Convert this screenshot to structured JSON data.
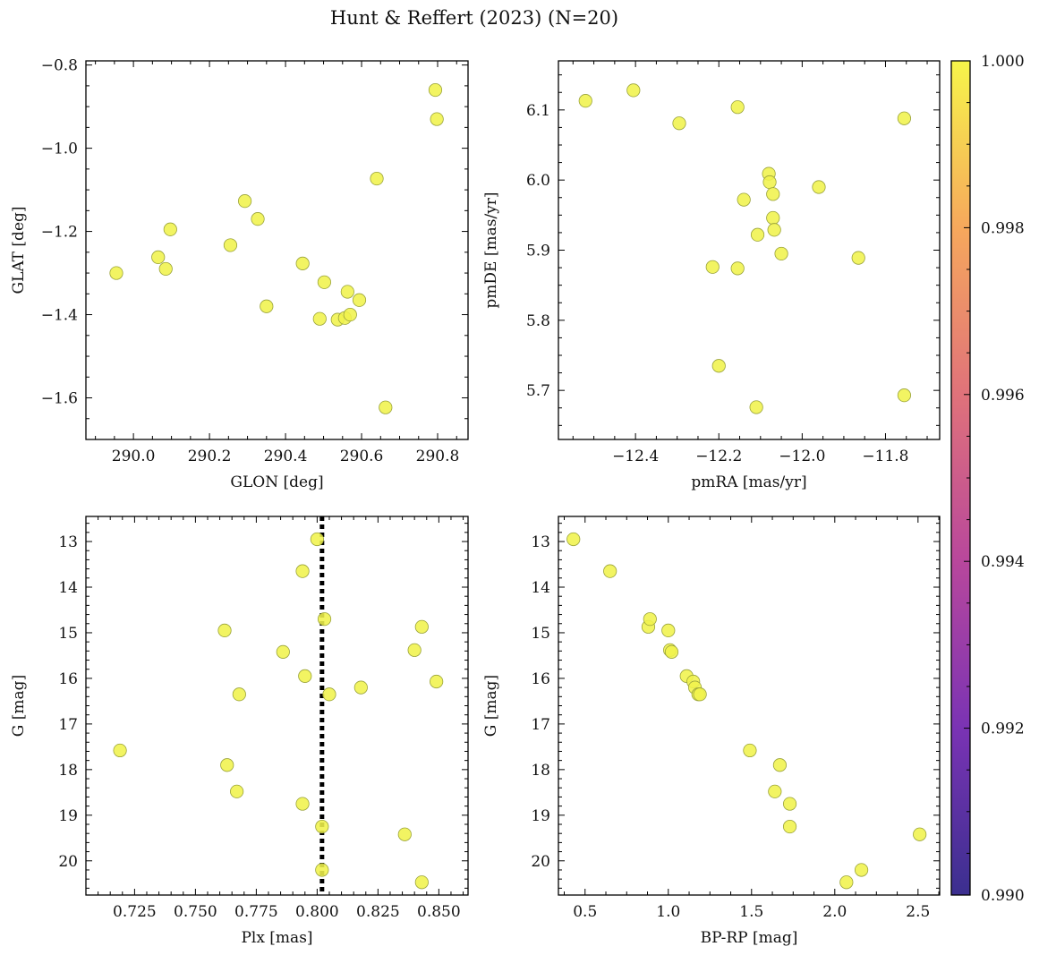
{
  "title": "Hunt & Reffert (2023) (N=20)",
  "colorbar": {
    "min": 0.99,
    "max": 1.0,
    "ticks": [
      "0.990",
      "0.992",
      "0.994",
      "0.996",
      "0.998",
      "1.000"
    ],
    "tick_values": [
      0.99,
      0.992,
      0.994,
      0.996,
      0.998,
      1.0
    ],
    "colormap": "plasma",
    "colors": [
      "#3b2f8f",
      "#7a33b4",
      "#b8479c",
      "#e0727a",
      "#f6a85c",
      "#f7f54a"
    ]
  },
  "point_style": {
    "fill": "#f0f34c",
    "stroke": "#9aa33a"
  },
  "chart_data": [
    {
      "type": "scatter",
      "xlabel": "GLON [deg]",
      "ylabel": "GLAT [deg]",
      "xlim": [
        289.875,
        290.88
      ],
      "ylim": [
        -1.7,
        -0.79
      ],
      "xticks": [
        290.0,
        290.2,
        290.4,
        290.6,
        290.8
      ],
      "xtick_labels": [
        "290.0",
        "290.2",
        "290.4",
        "290.6",
        "290.8"
      ],
      "yticks": [
        -1.6,
        -1.4,
        -1.2,
        -1.0,
        -0.8
      ],
      "ytick_labels": [
        "−1.6",
        "−1.4",
        "−1.2",
        "−1.0",
        "−0.8"
      ],
      "x": [
        289.955,
        290.065,
        290.085,
        290.097,
        290.255,
        290.293,
        290.327,
        290.35,
        290.445,
        290.49,
        290.502,
        290.537,
        290.556,
        290.563,
        290.57,
        290.594,
        290.64,
        290.663,
        290.794,
        290.798
      ],
      "y": [
        -1.3,
        -1.262,
        -1.29,
        -1.195,
        -1.233,
        -1.127,
        -1.17,
        -1.38,
        -1.277,
        -1.41,
        -1.322,
        -1.412,
        -1.408,
        -1.345,
        -1.4,
        -1.365,
        -1.073,
        -1.623,
        -0.86,
        -0.93
      ]
    },
    {
      "type": "scatter",
      "xlabel": "pmRA [mas/yr]",
      "ylabel": "pmDE [mas/yr]",
      "xlim": [
        -12.585,
        -11.67
      ],
      "ylim": [
        5.63,
        6.17
      ],
      "xticks": [
        -12.4,
        -12.2,
        -12.0,
        -11.8
      ],
      "xtick_labels": [
        "−12.4",
        "−12.2",
        "−12.0",
        "−11.8"
      ],
      "yticks": [
        5.7,
        5.8,
        5.9,
        6.0,
        6.1
      ],
      "ytick_labels": [
        "5.7",
        "5.8",
        "5.9",
        "6.0",
        "6.1"
      ],
      "x": [
        -12.52,
        -12.405,
        -12.295,
        -12.155,
        -12.14,
        -12.215,
        -12.155,
        -12.2,
        -12.11,
        -12.08,
        -12.078,
        -12.07,
        -12.07,
        -12.067,
        -12.05,
        -12.107,
        -11.96,
        -11.865,
        -11.755,
        -11.755
      ],
      "y": [
        6.113,
        6.128,
        6.081,
        6.104,
        5.972,
        5.876,
        5.874,
        5.735,
        5.676,
        6.009,
        5.997,
        5.98,
        5.946,
        5.929,
        5.895,
        5.922,
        5.99,
        5.889,
        6.088,
        5.693
      ]
    },
    {
      "type": "scatter",
      "xlabel": "Plx [mas]",
      "ylabel": "G [mag]",
      "xlim": [
        0.705,
        0.862
      ],
      "ylim": [
        20.75,
        12.45
      ],
      "y_inverted": true,
      "xticks": [
        0.725,
        0.75,
        0.775,
        0.8,
        0.825,
        0.85
      ],
      "xtick_labels": [
        "0.725",
        "0.750",
        "0.775",
        "0.800",
        "0.825",
        "0.850"
      ],
      "yticks": [
        13,
        14,
        15,
        16,
        17,
        18,
        19,
        20
      ],
      "ytick_labels": [
        "13",
        "14",
        "15",
        "16",
        "17",
        "18",
        "19",
        "20"
      ],
      "vline": 0.802,
      "x": [
        0.8,
        0.794,
        0.803,
        0.762,
        0.786,
        0.795,
        0.768,
        0.805,
        0.818,
        0.843,
        0.84,
        0.849,
        0.719,
        0.763,
        0.767,
        0.794,
        0.802,
        0.836,
        0.802,
        0.843
      ],
      "y": [
        12.95,
        13.65,
        14.7,
        14.95,
        15.42,
        15.95,
        16.35,
        16.35,
        16.2,
        14.87,
        15.38,
        16.07,
        17.58,
        17.9,
        18.48,
        18.75,
        19.25,
        19.42,
        20.2,
        20.47
      ]
    },
    {
      "type": "scatter",
      "xlabel": "BP-RP [mag]",
      "ylabel": "G [mag]",
      "xlim": [
        0.34,
        2.63
      ],
      "ylim": [
        20.75,
        12.45
      ],
      "y_inverted": true,
      "xticks": [
        0.5,
        1.0,
        1.5,
        2.0,
        2.5
      ],
      "xtick_labels": [
        "0.5",
        "1.0",
        "1.5",
        "2.0",
        "2.5"
      ],
      "yticks": [
        13,
        14,
        15,
        16,
        17,
        18,
        19,
        20
      ],
      "ytick_labels": [
        "13",
        "14",
        "15",
        "16",
        "17",
        "18",
        "19",
        "20"
      ],
      "x": [
        0.43,
        0.65,
        0.88,
        0.89,
        1.0,
        1.01,
        1.02,
        1.11,
        1.15,
        1.16,
        1.18,
        1.19,
        1.49,
        1.67,
        1.64,
        1.73,
        1.73,
        2.51,
        2.16,
        2.07
      ],
      "y": [
        12.95,
        13.65,
        14.87,
        14.7,
        14.95,
        15.38,
        15.42,
        15.95,
        16.07,
        16.2,
        16.35,
        16.35,
        17.58,
        17.9,
        18.48,
        18.75,
        19.25,
        19.42,
        20.2,
        20.47
      ]
    }
  ]
}
